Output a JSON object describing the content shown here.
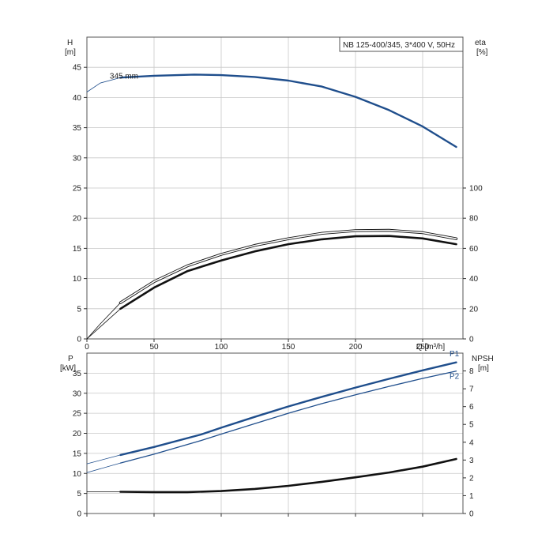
{
  "chart_data": [
    {
      "type": "line",
      "panel": "head-efficiency",
      "title_box": "NB 125-400/345, 3*400 V, 50Hz",
      "xlabel": "Q [m³/h]",
      "xlim": [
        0,
        280
      ],
      "xticks": [
        0,
        50,
        100,
        150,
        200,
        250
      ],
      "y_left": {
        "label": "H",
        "unit": "[m]",
        "lim": [
          0,
          50
        ],
        "ticks": [
          0,
          5,
          10,
          15,
          20,
          25,
          30,
          35,
          40,
          45
        ]
      },
      "y_right": {
        "label": "eta",
        "unit": "[%]",
        "lim": [
          0,
          200
        ],
        "ticks": [
          0,
          20,
          40,
          60,
          80,
          100
        ]
      },
      "grid": true,
      "series": [
        {
          "name": "345 mm",
          "axis": "left",
          "style": "thin-blue",
          "x": [
            0,
            10,
            25
          ],
          "y": [
            40.9,
            42.4,
            43.3
          ]
        },
        {
          "name": "345 mm",
          "axis": "left",
          "style": "thick-blue",
          "x": [
            25,
            50,
            80,
            100,
            125,
            150,
            175,
            200,
            225,
            250,
            275
          ],
          "y": [
            43.3,
            43.6,
            43.8,
            43.7,
            43.4,
            42.8,
            41.8,
            40.1,
            37.9,
            35.2,
            31.8
          ]
        },
        {
          "name": "",
          "axis": "right",
          "style": "thin-black",
          "x": [
            0,
            10,
            25
          ],
          "y": [
            0,
            10,
            24
          ]
        },
        {
          "name": "",
          "axis": "right",
          "style": "outline-black",
          "x": [
            25,
            50,
            75,
            100,
            125,
            150,
            175,
            200,
            225,
            250,
            275
          ],
          "y": [
            24,
            38,
            48.5,
            56,
            62,
            66.4,
            70,
            71.8,
            72,
            70.4,
            66.4
          ]
        },
        {
          "name": "",
          "axis": "right",
          "style": "thin-black",
          "x": [
            0,
            10,
            25
          ],
          "y": [
            0,
            8,
            20
          ]
        },
        {
          "name": "",
          "axis": "right",
          "style": "thick-black",
          "x": [
            25,
            50,
            75,
            100,
            125,
            150,
            175,
            200,
            225,
            250,
            275
          ],
          "y": [
            20,
            34,
            45,
            52,
            58,
            62.8,
            66,
            68,
            68.2,
            66.6,
            62.8
          ]
        }
      ],
      "annotations": [
        {
          "text": "345 mm",
          "x": 17,
          "y": 43.1
        }
      ]
    },
    {
      "type": "line",
      "panel": "power-npsh",
      "xlim": [
        0,
        280
      ],
      "xticks": [
        0,
        50,
        100,
        150,
        200,
        250
      ],
      "y_left": {
        "label": "P",
        "unit": "[kW]",
        "lim": [
          0,
          40
        ],
        "ticks": [
          0,
          5,
          10,
          15,
          20,
          25,
          30,
          35
        ]
      },
      "y_right": {
        "label": "NPSH",
        "unit": "[m]",
        "lim": [
          0,
          9
        ],
        "ticks": [
          0,
          1,
          2,
          3,
          4,
          5,
          6,
          7,
          8
        ]
      },
      "grid": true,
      "series": [
        {
          "name": "P1",
          "axis": "left",
          "style": "thin-blue",
          "x": [
            0,
            25
          ],
          "y": [
            12.4,
            14.6
          ]
        },
        {
          "name": "P1",
          "axis": "left",
          "style": "thick-blue",
          "x": [
            25,
            50,
            85,
            100,
            125,
            150,
            175,
            200,
            225,
            250,
            275
          ],
          "y": [
            14.6,
            16.6,
            19.7,
            21.4,
            24.1,
            26.7,
            29.1,
            31.4,
            33.6,
            35.7,
            37.7
          ]
        },
        {
          "name": "P2",
          "axis": "left",
          "style": "thin-blue",
          "x": [
            0,
            25
          ],
          "y": [
            10.2,
            12.6
          ]
        },
        {
          "name": "P2",
          "axis": "left",
          "style": "medium-blue",
          "x": [
            25,
            50,
            85,
            100,
            125,
            150,
            175,
            200,
            225,
            250,
            275
          ],
          "y": [
            12.6,
            14.8,
            18.2,
            19.8,
            22.4,
            25.0,
            27.4,
            29.6,
            31.7,
            33.7,
            35.5
          ]
        },
        {
          "name": "",
          "axis": "right",
          "style": "thin-black",
          "x": [
            0,
            25
          ],
          "y": [
            1.22,
            1.22
          ]
        },
        {
          "name": "",
          "axis": "right",
          "style": "thick-black",
          "x": [
            25,
            50,
            75,
            100,
            125,
            150,
            175,
            200,
            225,
            250,
            275
          ],
          "y": [
            1.22,
            1.2,
            1.2,
            1.26,
            1.38,
            1.55,
            1.78,
            2.03,
            2.3,
            2.63,
            3.06
          ]
        }
      ],
      "annotations": [
        {
          "text": "P1",
          "x": 270,
          "y": 39.2
        },
        {
          "text": "P2",
          "x": 270,
          "y": 33.6
        }
      ]
    }
  ],
  "colors": {
    "blue": "#1f4e8c",
    "black": "#111111",
    "grid": "#c8c8c8"
  }
}
